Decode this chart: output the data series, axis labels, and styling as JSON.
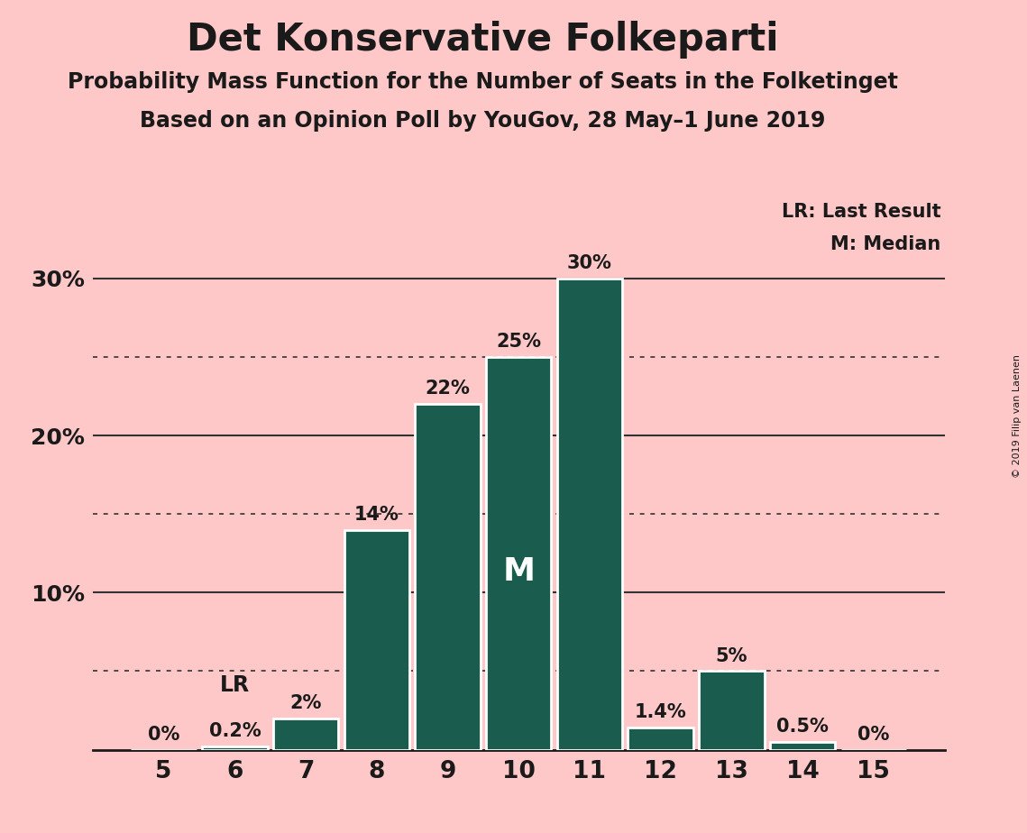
{
  "title": "Det Konservative Folkeparti",
  "subtitle1": "Probability Mass Function for the Number of Seats in the Folketinget",
  "subtitle2": "Based on an Opinion Poll by YouGov, 28 May–1 June 2019",
  "copyright": "© 2019 Filip van Laenen",
  "categories": [
    5,
    6,
    7,
    8,
    9,
    10,
    11,
    12,
    13,
    14,
    15
  ],
  "values": [
    0.0,
    0.2,
    2.0,
    14.0,
    22.0,
    25.0,
    30.0,
    1.4,
    5.0,
    0.5,
    0.0
  ],
  "bar_color": "#1a5c4e",
  "bar_edge_color": "#ffffff",
  "background_color": "#ffc8c8",
  "text_color": "#1a1a1a",
  "label_texts": [
    "0%",
    "0.2%",
    "2%",
    "14%",
    "22%",
    "25%",
    "30%",
    "1.4%",
    "5%",
    "0.5%",
    "0%"
  ],
  "lr_seat": 6,
  "median_seat": 10,
  "ylim": [
    0,
    35
  ],
  "yticks": [
    0,
    10,
    20,
    30
  ],
  "ytick_labels": [
    "",
    "10%",
    "20%",
    "30%"
  ],
  "grid_color": "#333333",
  "dotted_grid_levels": [
    5,
    15,
    25
  ],
  "solid_grid_levels": [
    10,
    20,
    30
  ],
  "legend_lr": "LR: Last Result",
  "legend_m": "M: Median",
  "figsize": [
    11.39,
    9.24
  ],
  "dpi": 100
}
